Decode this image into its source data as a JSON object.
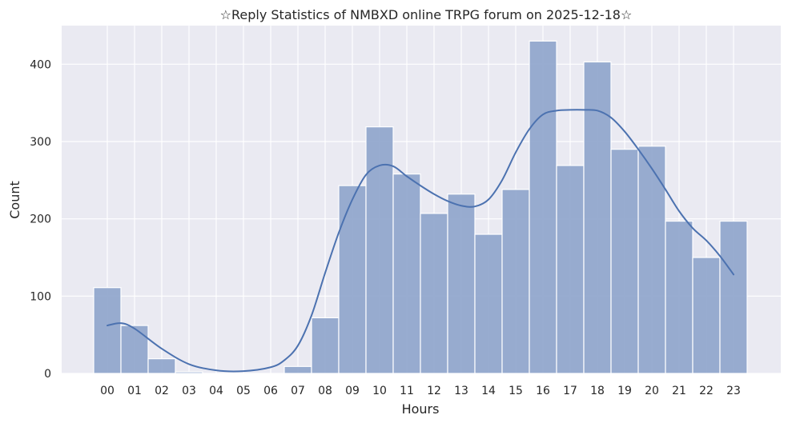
{
  "chart_data": {
    "type": "bar",
    "subtype": "histogram_with_kde",
    "title": "☆Reply Statistics of NMBXD online TRPG forum on 2025-12-18☆",
    "xlabel": "Hours",
    "ylabel": "Count",
    "categories": [
      "00",
      "01",
      "02",
      "03",
      "04",
      "05",
      "06",
      "07",
      "08",
      "09",
      "10",
      "11",
      "12",
      "13",
      "14",
      "15",
      "16",
      "17",
      "18",
      "19",
      "20",
      "21",
      "22",
      "23"
    ],
    "values": [
      111,
      62,
      19,
      2,
      0,
      0,
      0,
      9,
      72,
      243,
      319,
      258,
      207,
      232,
      180,
      238,
      430,
      269,
      403,
      290,
      294,
      197,
      150,
      197
    ],
    "yticks": [
      0,
      100,
      200,
      300,
      400
    ],
    "ylim": [
      0,
      450
    ],
    "grid": true,
    "kde": {
      "x": [
        0.0,
        0.5,
        1.0,
        2.0,
        3.0,
        4.0,
        5.0,
        6.0,
        6.5,
        7.0,
        7.5,
        8.0,
        8.5,
        9.0,
        9.5,
        10.0,
        10.5,
        11.0,
        11.5,
        12.0,
        12.5,
        13.0,
        13.5,
        14.0,
        14.5,
        15.0,
        15.5,
        16.0,
        16.5,
        17.0,
        17.5,
        18.0,
        18.5,
        19.0,
        19.5,
        20.0,
        20.5,
        21.0,
        21.5,
        22.0,
        22.5,
        23.0
      ],
      "y": [
        62,
        65,
        58,
        32,
        12,
        4,
        3,
        8,
        17,
        36,
        75,
        130,
        182,
        225,
        257,
        269,
        268,
        255,
        243,
        232,
        223,
        217,
        216,
        225,
        250,
        286,
        316,
        335,
        340,
        341,
        341,
        340,
        331,
        313,
        290,
        265,
        238,
        210,
        188,
        172,
        152,
        128
      ]
    },
    "colors": {
      "bar": "#8fa5cc",
      "line": "#4c72b0",
      "background": "#eaeaf2",
      "grid": "#ffffff",
      "text": "#262626"
    }
  }
}
